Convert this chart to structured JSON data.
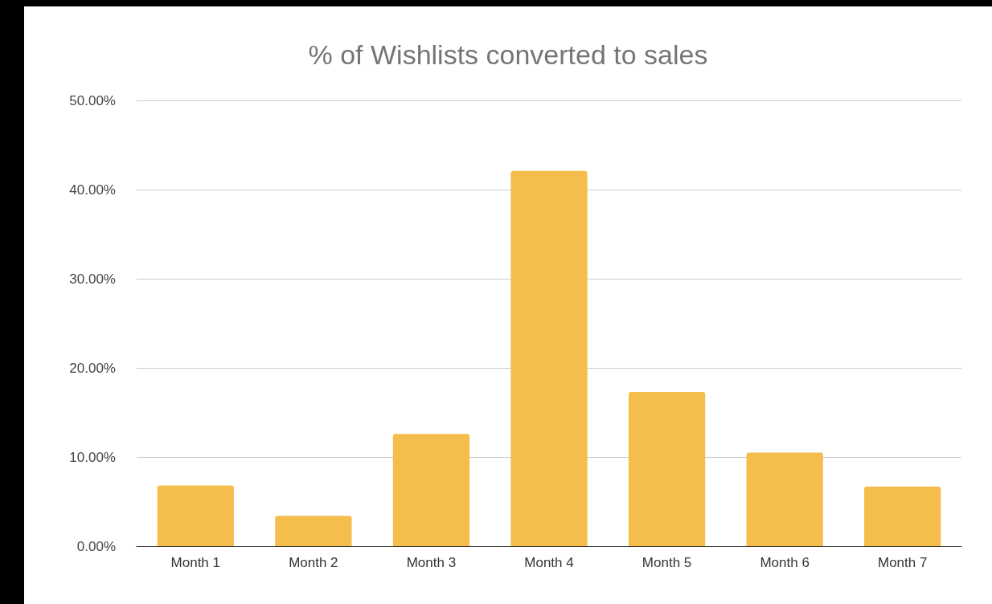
{
  "chart_data": {
    "type": "bar",
    "title": "% of Wishlists converted to sales",
    "categories": [
      "Month 1",
      "Month 2",
      "Month 3",
      "Month 4",
      "Month 5",
      "Month 6",
      "Month 7"
    ],
    "values": [
      6.8,
      3.4,
      12.6,
      42.1,
      17.3,
      10.5,
      6.7
    ],
    "color": "#f4bd4c",
    "ylim": [
      0,
      50
    ],
    "yticks": [
      {
        "value": 0,
        "label": "0.00%"
      },
      {
        "value": 10,
        "label": "10.00%"
      },
      {
        "value": 20,
        "label": "20.00%"
      },
      {
        "value": 30,
        "label": "30.00%"
      },
      {
        "value": 40,
        "label": "40.00%"
      },
      {
        "value": 50,
        "label": "50.00%"
      }
    ],
    "grid": "y"
  }
}
